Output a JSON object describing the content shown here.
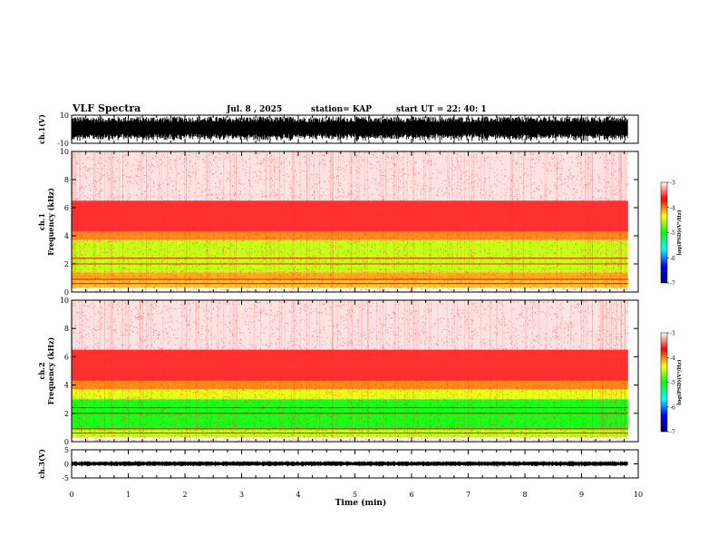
{
  "header": {
    "title": "VLF Spectra",
    "date": "Jul. 8 , 2025",
    "station": "station= KAP",
    "start": "start UT =  22: 40: 1"
  },
  "chart_data": [
    {
      "type": "line",
      "panel": "ch1-waveform",
      "ylabel": "ch.1(V)",
      "ylim": [
        -10,
        10
      ],
      "yticks": [
        "10",
        "-10"
      ],
      "xlim": [
        0,
        10
      ],
      "x_end": 9.82,
      "trace_color": "#000000",
      "note": "dense waveform spanning roughly -10 to +10 V"
    },
    {
      "type": "heatmap",
      "panel": "ch1-spectrogram",
      "ylabel": "ch.1\nFrequency (kHz)",
      "ylim": [
        0,
        10
      ],
      "yticks": [
        "0",
        "2",
        "4",
        "6",
        "8",
        "10"
      ],
      "xlim": [
        0,
        10
      ],
      "x_end": 9.82,
      "colorbar": {
        "label": "log(PSD)(V²/Hz)",
        "range": [
          -7,
          -3
        ],
        "ticks": [
          "-3",
          "-4",
          "-5",
          "-6",
          "-7"
        ],
        "colors": [
          "#ffffff",
          "#ff0000",
          "#ffff00",
          "#00ff00",
          "#00ffff",
          "#0000ff",
          "#000080"
        ]
      },
      "bands": [
        {
          "from": 0.3,
          "to": 0.9,
          "level": -4.2
        },
        {
          "from": 0.9,
          "to": 1.4,
          "level": -4.1
        },
        {
          "from": 1.4,
          "to": 3.7,
          "level": -4.5
        },
        {
          "from": 3.7,
          "to": 4.3,
          "level": -4.0
        },
        {
          "from": 4.3,
          "to": 6.5,
          "level": -3.6
        },
        {
          "from": 6.5,
          "to": 10,
          "level": -3.3
        }
      ]
    },
    {
      "type": "heatmap",
      "panel": "ch2-spectrogram",
      "ylabel": "ch.2\nFrequency (kHz)",
      "ylim": [
        0,
        10
      ],
      "yticks": [
        "0",
        "2",
        "4",
        "6",
        "8",
        "10"
      ],
      "xlim": [
        0,
        10
      ],
      "x_end": 9.82,
      "colorbar": {
        "label": "log(PSD)(V²/Hz)",
        "range": [
          -7,
          -3
        ],
        "ticks": [
          "-3",
          "-4",
          "-5",
          "-6",
          "-7"
        ],
        "colors": [
          "#ffffff",
          "#ff0000",
          "#ffff00",
          "#00ff00",
          "#00ffff",
          "#0000ff",
          "#000080"
        ]
      },
      "bands": [
        {
          "from": 0.3,
          "to": 0.9,
          "level": -4.5
        },
        {
          "from": 0.9,
          "to": 3.0,
          "level": -5.0
        },
        {
          "from": 3.0,
          "to": 3.7,
          "level": -4.4
        },
        {
          "from": 3.7,
          "to": 4.3,
          "level": -4.0
        },
        {
          "from": 4.3,
          "to": 6.5,
          "level": -3.6
        },
        {
          "from": 6.5,
          "to": 10,
          "level": -3.3
        }
      ]
    },
    {
      "type": "line",
      "panel": "ch3-waveform",
      "ylabel": "ch.3(V)",
      "ylim": [
        -5,
        5
      ],
      "yticks": [
        "5",
        "0",
        "-5"
      ],
      "xlim": [
        0,
        10
      ],
      "x_end": 9.82,
      "trace_color": "#000000",
      "note": "dense waveform band between about -1.5 and +1.5 V"
    }
  ],
  "xaxis": {
    "label": "Time (min)",
    "ticks": [
      "0",
      "1",
      "2",
      "3",
      "4",
      "5",
      "6",
      "7",
      "8",
      "9",
      "10"
    ]
  }
}
